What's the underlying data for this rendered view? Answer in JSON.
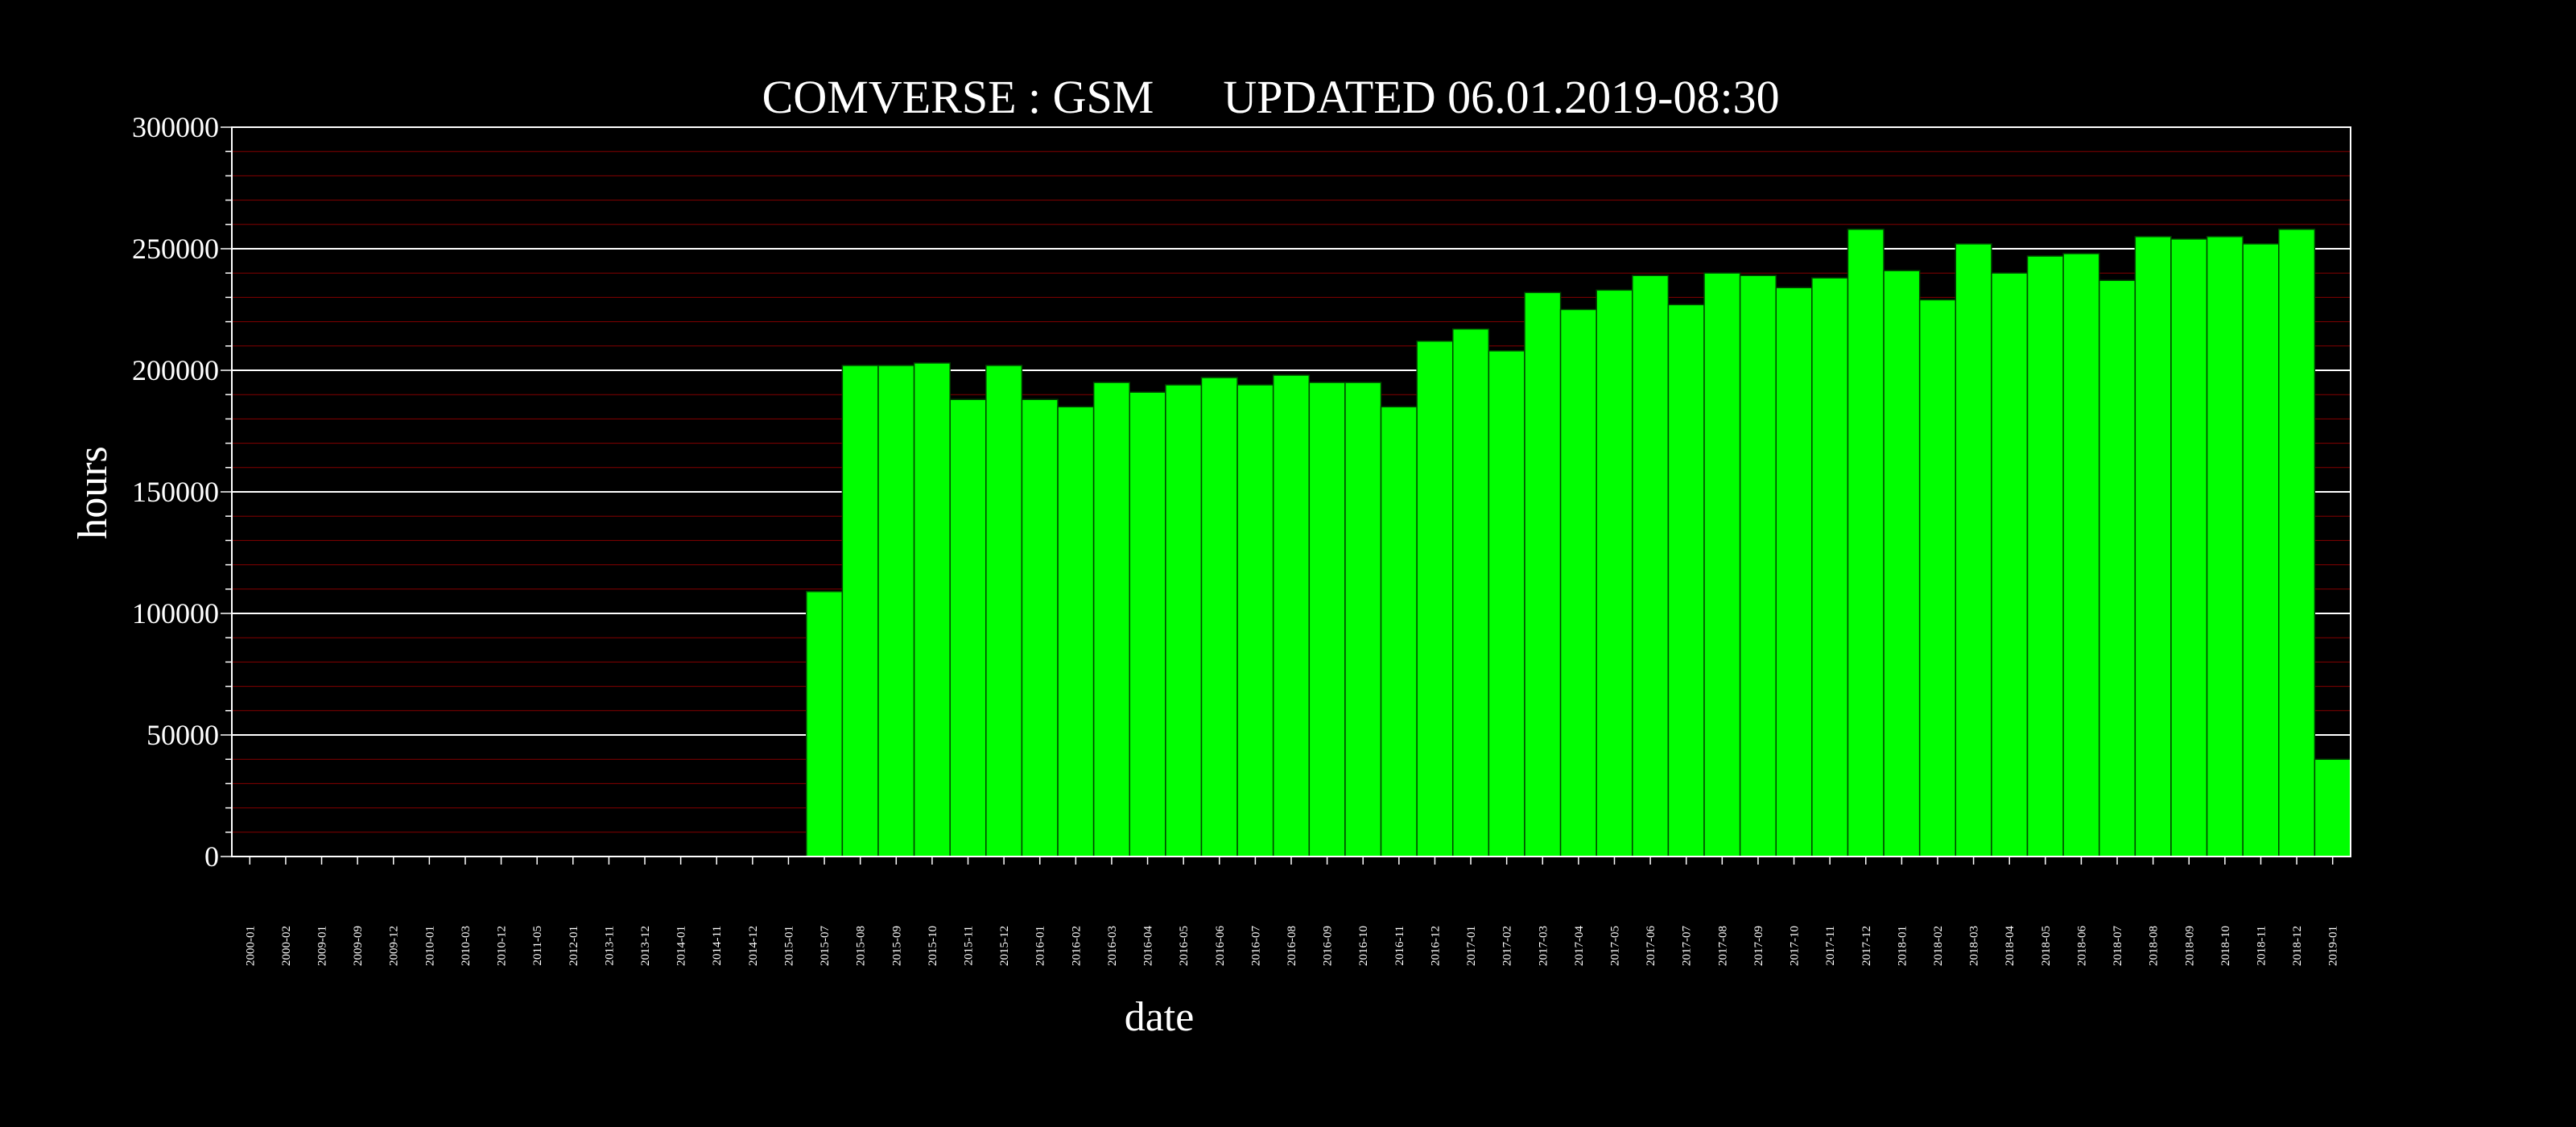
{
  "chart_data": {
    "type": "bar",
    "title": "COMVERSE : GSM",
    "subtitle": "UPDATED 06.01.2019-08:30",
    "xlabel": "date",
    "ylabel": "hours",
    "ylim": [
      0,
      300000
    ],
    "yticks": [
      0,
      50000,
      100000,
      150000,
      200000,
      250000,
      300000
    ],
    "grid": true,
    "legend": "none",
    "colors": {
      "background": "#000000",
      "bar_fill": "#00ff00",
      "bar_edge": "#004400",
      "major_grid": "#ffffff",
      "minor_grid": "#b00000",
      "text": "#ffffff"
    },
    "categories": [
      "2000-01",
      "2000-02",
      "2009-01",
      "2009-09",
      "2009-12",
      "2010-01",
      "2010-03",
      "2010-12",
      "2011-05",
      "2012-01",
      "2013-11",
      "2013-12",
      "2014-01",
      "2014-11",
      "2014-12",
      "2015-01",
      "2015-07",
      "2015-08",
      "2015-09",
      "2015-10",
      "2015-11",
      "2015-12",
      "2016-01",
      "2016-02",
      "2016-03",
      "2016-04",
      "2016-05",
      "2016-06",
      "2016-07",
      "2016-08",
      "2016-09",
      "2016-10",
      "2016-11",
      "2016-12",
      "2017-01",
      "2017-02",
      "2017-03",
      "2017-04",
      "2017-05",
      "2017-06",
      "2017-07",
      "2017-08",
      "2017-09",
      "2017-10",
      "2017-11",
      "2017-12",
      "2018-01",
      "2018-02",
      "2018-03",
      "2018-04",
      "2018-05",
      "2018-06",
      "2018-07",
      "2018-08",
      "2018-09",
      "2018-10",
      "2018-11",
      "2018-12",
      "2019-01"
    ],
    "values": [
      0,
      0,
      0,
      0,
      0,
      0,
      0,
      0,
      0,
      0,
      0,
      0,
      0,
      0,
      0,
      0,
      109000,
      202000,
      202000,
      203000,
      188000,
      202000,
      188000,
      185000,
      195000,
      191000,
      194000,
      197000,
      194000,
      198000,
      195000,
      195000,
      185000,
      212000,
      217000,
      208000,
      232000,
      225000,
      233000,
      239000,
      227000,
      240000,
      239000,
      234000,
      238000,
      258000,
      241000,
      229000,
      252000,
      240000,
      247000,
      248000,
      237000,
      255000,
      254000,
      255000,
      252000,
      258000,
      40000
    ]
  }
}
